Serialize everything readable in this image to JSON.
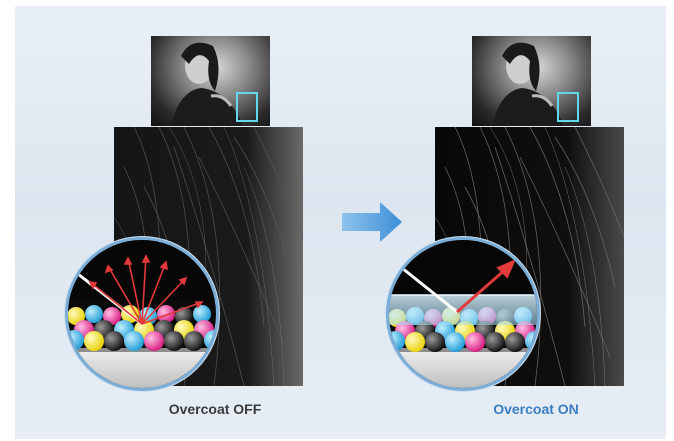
{
  "left": {
    "caption": "Overcoat OFF"
  },
  "right": {
    "caption": "Overcoat ON"
  },
  "colors": {
    "highlight": "#5fd8ee",
    "arrow": "#3c8fd6",
    "on_caption": "#3a7ec2",
    "off_caption": "#3a3a3a",
    "reflection": "#e23a3a"
  },
  "icons": {
    "transition": "right-arrow-icon"
  }
}
